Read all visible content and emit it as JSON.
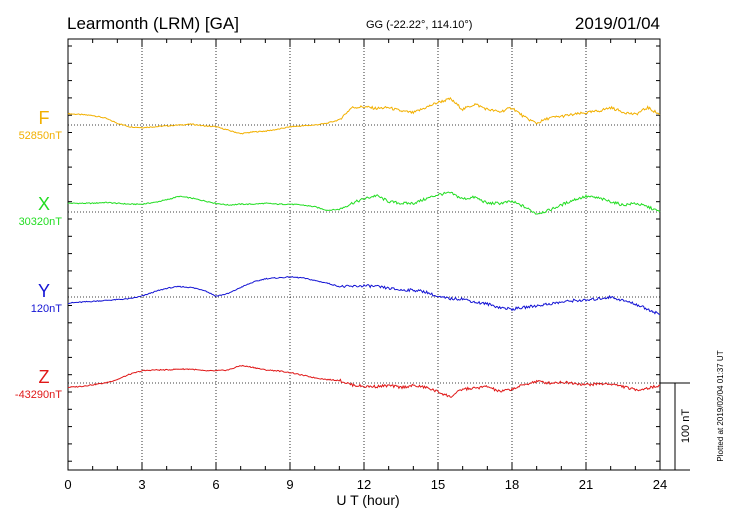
{
  "header": {
    "station": "Learmonth (LRM)  [GA]",
    "coords": "GG (-22.22°, 114.10°)",
    "date": "2019/01/04"
  },
  "scale_bar": {
    "label": "100 nT",
    "value_nT": 100
  },
  "footer_note": "Plotted at 2019/02/04 01:37 UT",
  "chart_data": {
    "type": "line",
    "title": "Learmonth (LRM)  [GA]",
    "xlabel": "U T (hour)",
    "ylabel": "",
    "xlim": [
      0,
      24
    ],
    "x_ticks": [
      0,
      3,
      6,
      9,
      12,
      15,
      18,
      21,
      24
    ],
    "grid": true,
    "scale_nT": 100,
    "x": [
      0,
      0.5,
      1,
      1.5,
      2,
      2.5,
      3,
      3.5,
      4,
      4.5,
      5,
      5.5,
      6,
      6.5,
      7,
      7.5,
      8,
      8.5,
      9,
      9.5,
      10,
      10.5,
      11,
      11.5,
      12,
      12.5,
      13,
      13.5,
      14,
      14.5,
      15,
      15.5,
      16,
      16.5,
      17,
      17.5,
      18,
      18.5,
      19,
      19.5,
      20,
      20.5,
      21,
      21.5,
      22,
      22.5,
      23,
      23.5,
      24
    ],
    "series": [
      {
        "name": "F",
        "baseline_label": "52850nT",
        "color": "#f2b000",
        "values": [
          52863,
          52862,
          52861,
          52858,
          52852,
          52848,
          52847,
          52848,
          52849,
          52850,
          52851,
          52849,
          52848,
          52844,
          52840,
          52842,
          52843,
          52845,
          52848,
          52849,
          52850,
          52852,
          52856,
          52870,
          52871,
          52869,
          52870,
          52866,
          52864,
          52870,
          52876,
          52880,
          52868,
          52874,
          52868,
          52865,
          52870,
          52859,
          52852,
          52858,
          52860,
          52862,
          52864,
          52866,
          52870,
          52865,
          52862,
          52870,
          52862
        ]
      },
      {
        "name": "X",
        "baseline_label": "30320nT",
        "color": "#22dd22",
        "values": [
          30330,
          30330,
          30330,
          30331,
          30330,
          30329,
          30329,
          30331,
          30334,
          30338,
          30336,
          30333,
          30330,
          30328,
          30329,
          30329,
          30330,
          30329,
          30329,
          30328,
          30326,
          30322,
          30323,
          30330,
          30335,
          30339,
          30332,
          30330,
          30330,
          30335,
          30340,
          30342,
          30335,
          30337,
          30330,
          30330,
          30332,
          30326,
          30318,
          30322,
          30328,
          30334,
          30338,
          30336,
          30332,
          30328,
          30330,
          30326,
          30320
        ]
      },
      {
        "name": "Y",
        "baseline_label": "120nT",
        "color": "#1414d4",
        "values": [
          113,
          114,
          115,
          116,
          117,
          118,
          121,
          126,
          130,
          132,
          131,
          128,
          121,
          124,
          131,
          137,
          141,
          142,
          143,
          142,
          139,
          136,
          132,
          132,
          133,
          132,
          130,
          128,
          128,
          126,
          120,
          118,
          118,
          114,
          112,
          108,
          106,
          108,
          110,
          112,
          114,
          116,
          116,
          118,
          120,
          116,
          112,
          106,
          100
        ]
      },
      {
        "name": "Z",
        "baseline_label": "-43290nT",
        "color": "#e01818",
        "values": [
          -43295,
          -43294,
          -43292,
          -43290,
          -43286,
          -43280,
          -43276,
          -43275,
          -43275,
          -43274,
          -43274,
          -43276,
          -43276,
          -43275,
          -43270,
          -43272,
          -43275,
          -43276,
          -43278,
          -43281,
          -43284,
          -43286,
          -43287,
          -43292,
          -43294,
          -43294,
          -43293,
          -43295,
          -43293,
          -43295,
          -43300,
          -43306,
          -43297,
          -43296,
          -43294,
          -43300,
          -43297,
          -43292,
          -43288,
          -43290,
          -43289,
          -43290,
          -43292,
          -43291,
          -43291,
          -43294,
          -43298,
          -43296,
          -43293
        ]
      }
    ]
  }
}
